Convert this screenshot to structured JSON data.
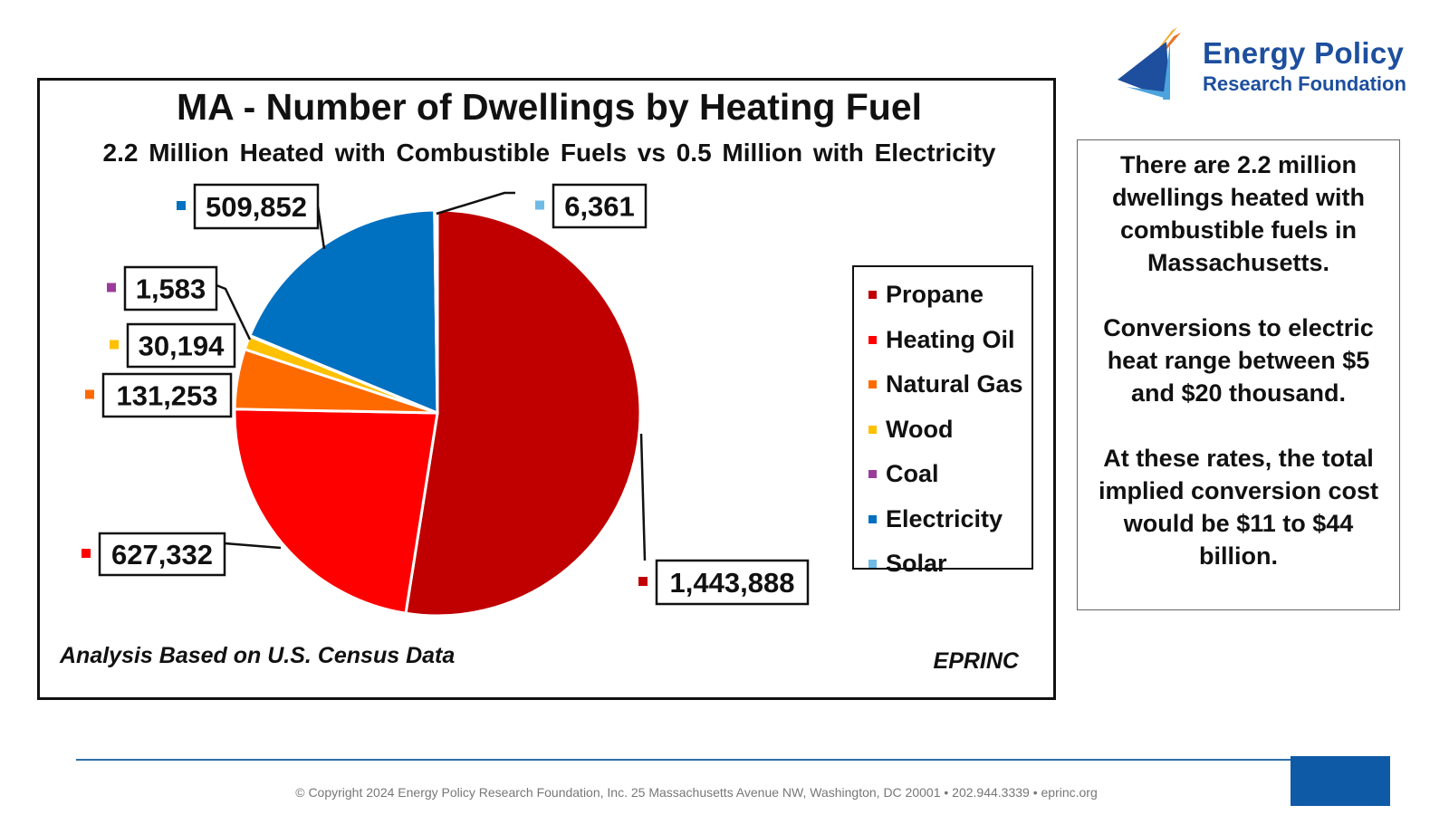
{
  "chart_data": {
    "type": "pie",
    "title": "MA - Number of Dwellings by Heating Fuel",
    "subtitle": "2.2 Million  Heated with  Combustible Fuels vs 0.5 Million  with  Electricity",
    "categories": [
      "Propane",
      "Heating Oil",
      "Natural Gas",
      "Wood",
      "Coal",
      "Electricity",
      "Solar"
    ],
    "values": [
      1443888,
      627332,
      131253,
      30194,
      1583,
      509852,
      6361
    ],
    "data_labels": [
      "1,443,888",
      "627,332",
      "131,253",
      "30,194",
      "1,583",
      "509,852",
      "6,361"
    ],
    "colors": [
      "#c00000",
      "#ff0000",
      "#ff6a00",
      "#ffc000",
      "#9b3c9b",
      "#0070c0",
      "#6fbbe6"
    ],
    "legend_position": "right",
    "note": "Analysis Based on U.S. Census Data",
    "source": "EPRINC"
  },
  "side_panel": {
    "paragraphs": [
      "There are 2.2 million dwellings heated with combustible fuels in Massachusetts.",
      "Conversions to electric heat range between $5 and $20 thousand.",
      "At these rates, the total implied conversion cost would be $11 to $44 billion."
    ]
  },
  "logo": {
    "line1": "Energy Policy",
    "line2": "Research Foundation",
    "colors": {
      "text": "#1d4f9e",
      "dark_blue": "#1d4f9e",
      "light_blue": "#4da3dc",
      "orange": "#f5a623"
    }
  },
  "footer": {
    "text": "© Copyright 2024 Energy Policy Research Foundation, Inc. 25 Massachusetts Avenue NW, Washington, DC 20001 • 202.944.3339 • eprinc.org",
    "colors": {
      "rule": "#2f6fa8",
      "block": "#0f5aa6"
    }
  }
}
